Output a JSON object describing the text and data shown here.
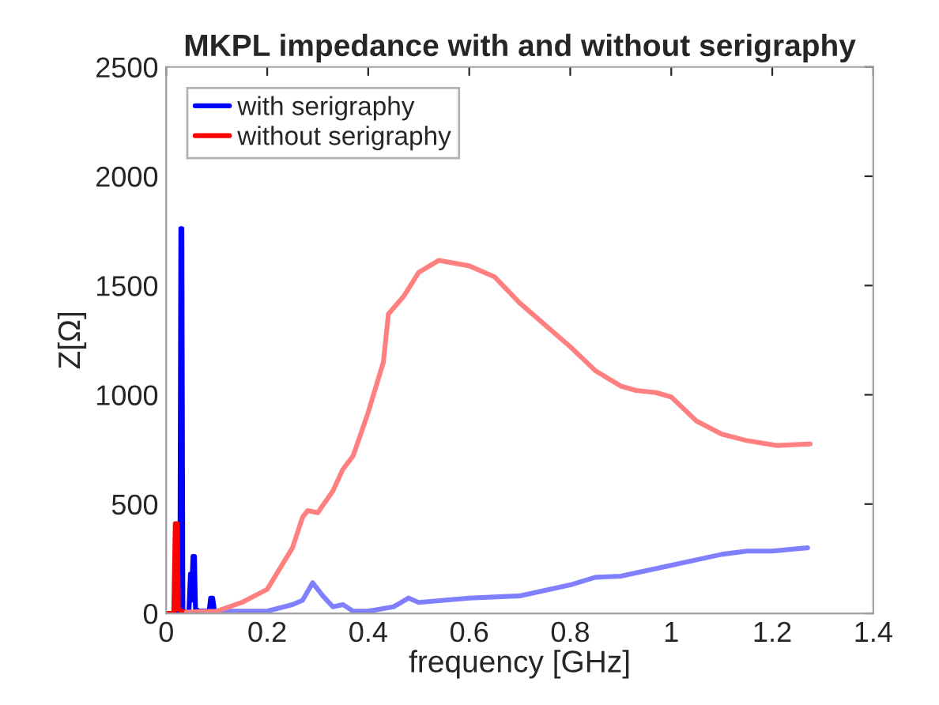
{
  "chart_data": {
    "type": "line",
    "title": "MKPL impedance with and without serigraphy",
    "xlabel": "frequency [GHz]",
    "ylabel": "Z[Ω]",
    "xlim": [
      0,
      1.4
    ],
    "xticks": [
      0,
      0.2,
      0.4,
      0.6,
      0.8,
      1,
      1.2,
      1.4
    ],
    "ylim": [
      0,
      2500
    ],
    "yticks": [
      0,
      500,
      1000,
      1500,
      2000,
      2500
    ],
    "grid": false,
    "legend": "top left",
    "series": [
      {
        "name": "with serigraphy",
        "color": "#0000ff",
        "x": [
          0,
          0.02,
          0.027,
          0.029,
          0.031,
          0.033,
          0.045,
          0.048,
          0.05,
          0.053,
          0.056,
          0.058,
          0.065,
          0.085,
          0.088,
          0.092,
          0.095,
          0.1
        ],
        "values": [
          0,
          0,
          0,
          1760,
          1760,
          0,
          10,
          180,
          60,
          260,
          260,
          20,
          10,
          10,
          70,
          70,
          20,
          10
        ]
      },
      {
        "name": "without serigraphy",
        "color": "#ff0000",
        "x": [
          0,
          0.015,
          0.018,
          0.022,
          0.024,
          0.03,
          0.04
        ],
        "values": [
          0,
          0,
          410,
          410,
          20,
          10,
          5
        ]
      },
      {
        "color": "#8080ff",
        "x": [
          0.1,
          0.2,
          0.25,
          0.27,
          0.29,
          0.31,
          0.33,
          0.35,
          0.37,
          0.4,
          0.45,
          0.48,
          0.5,
          0.6,
          0.7,
          0.8,
          0.85,
          0.9,
          1.0,
          1.1,
          1.15,
          1.2,
          1.27
        ],
        "values": [
          10,
          10,
          40,
          60,
          140,
          80,
          30,
          40,
          10,
          10,
          30,
          70,
          50,
          70,
          80,
          130,
          165,
          170,
          220,
          270,
          285,
          285,
          300
        ]
      },
      {
        "color": "#ff8080",
        "x": [
          0.04,
          0.1,
          0.15,
          0.2,
          0.25,
          0.27,
          0.28,
          0.3,
          0.33,
          0.35,
          0.37,
          0.4,
          0.43,
          0.44,
          0.47,
          0.5,
          0.54,
          0.6,
          0.65,
          0.7,
          0.8,
          0.85,
          0.9,
          0.93,
          0.97,
          1.0,
          1.05,
          1.1,
          1.15,
          1.21,
          1.275
        ],
        "values": [
          5,
          10,
          50,
          110,
          300,
          440,
          470,
          460,
          560,
          660,
          720,
          920,
          1150,
          1370,
          1450,
          1560,
          1615,
          1590,
          1540,
          1420,
          1220,
          1110,
          1040,
          1020,
          1010,
          990,
          880,
          820,
          790,
          768,
          775
        ]
      }
    ]
  }
}
